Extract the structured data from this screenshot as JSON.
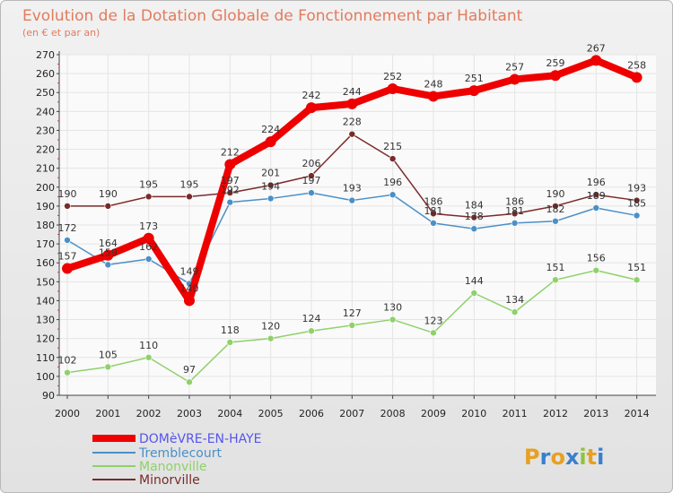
{
  "chart_data": {
    "type": "line",
    "title": "Evolution de la Dotation Globale de Fonctionnement par Habitant",
    "subtitle": "(en € et par an)",
    "x": [
      "2000",
      "2001",
      "2002",
      "2003",
      "2004",
      "2005",
      "2006",
      "2007",
      "2008",
      "2009",
      "2010",
      "2011",
      "2012",
      "2013",
      "2014"
    ],
    "ylim": [
      90,
      270
    ],
    "yticks": [
      90,
      100,
      110,
      120,
      130,
      140,
      150,
      160,
      170,
      180,
      190,
      200,
      210,
      220,
      230,
      240,
      250,
      260,
      270
    ],
    "grid": true,
    "legend_position": "bottom-left",
    "series": [
      {
        "name": "DOMèVRE-EN-HAYE",
        "color": "#ee0000",
        "legend_color": "#5555ee",
        "values": [
          157,
          164,
          173,
          140,
          212,
          224,
          242,
          244,
          252,
          248,
          251,
          257,
          259,
          267,
          258
        ],
        "labels": [
          "157",
          "164",
          "173",
          "140",
          "212",
          "224",
          "242",
          "244",
          "252",
          "248",
          "251",
          "257",
          "259",
          "267",
          "258"
        ]
      },
      {
        "name": "Tremblecourt",
        "color": "#4a90c8",
        "legend_color": "#4a90c8",
        "values": [
          172,
          159,
          162,
          149,
          192,
          194,
          197,
          193,
          196,
          181,
          178,
          181,
          182,
          189,
          185
        ],
        "labels": [
          "172",
          "159",
          "162",
          "149",
          "192",
          "194",
          "197",
          "193",
          "196",
          "181",
          "178",
          "181",
          "182",
          "189",
          "185"
        ]
      },
      {
        "name": "Manonville",
        "color": "#8fd16a",
        "legend_color": "#8fd16a",
        "values": [
          102,
          105,
          110,
          97,
          118,
          120,
          124,
          127,
          130,
          123,
          144,
          134,
          151,
          156,
          151
        ],
        "labels": [
          "102",
          "105",
          "110",
          "97",
          "118",
          "120",
          "124",
          "127",
          "130",
          "123",
          "144",
          "134",
          "151",
          "156",
          "151"
        ]
      },
      {
        "name": "Minorville",
        "color": "#7a2a2a",
        "legend_color": "#7a2a2a",
        "values": [
          190,
          190,
          195,
          195,
          197,
          201,
          206,
          228,
          215,
          186,
          184,
          186,
          190,
          196,
          193
        ],
        "labels": [
          "190",
          "190",
          "195",
          "195",
          "197",
          "201",
          "206",
          "228",
          "215",
          "186",
          "184",
          "186",
          "190",
          "196",
          "193"
        ]
      }
    ]
  },
  "logo": {
    "text": "Proxiti",
    "letters": [
      "P",
      "r",
      "o",
      "x",
      "i",
      "t",
      "i"
    ],
    "colors": [
      "#e8a020",
      "#3a7fcf",
      "#e8a020",
      "#3a7fcf",
      "#8fc43a",
      "#e8a020",
      "#3a7fcf"
    ]
  }
}
